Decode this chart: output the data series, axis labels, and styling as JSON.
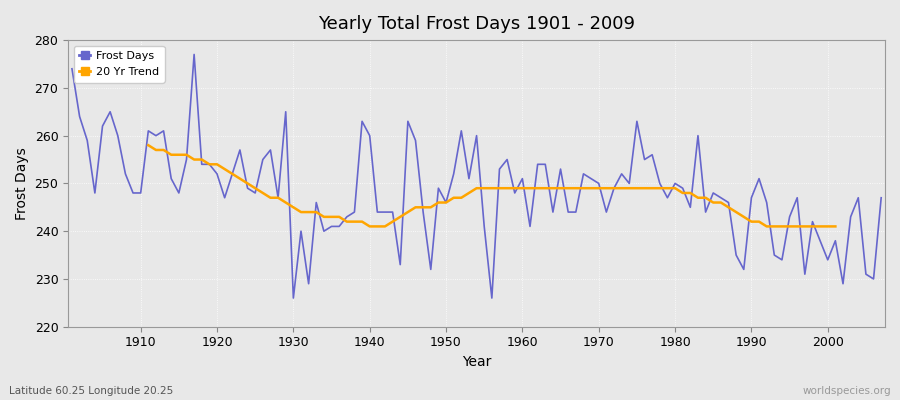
{
  "title": "Yearly Total Frost Days 1901 - 2009",
  "xlabel": "Year",
  "ylabel": "Frost Days",
  "bottom_left_label": "Latitude 60.25 Longitude 20.25",
  "bottom_right_label": "worldspecies.org",
  "frost_days": {
    "1901": 274,
    "1902": 264,
    "1903": 259,
    "1904": 248,
    "1905": 262,
    "1906": 265,
    "1907": 260,
    "1908": 252,
    "1909": 248,
    "1910": 248,
    "1911": 261,
    "1912": 260,
    "1913": 261,
    "1914": 251,
    "1915": 248,
    "1916": 255,
    "1917": 277,
    "1918": 254,
    "1919": 254,
    "1920": 252,
    "1921": 247,
    "1922": 252,
    "1923": 257,
    "1924": 249,
    "1925": 248,
    "1926": 255,
    "1927": 257,
    "1928": 247,
    "1929": 265,
    "1930": 226,
    "1931": 240,
    "1932": 229,
    "1933": 246,
    "1934": 240,
    "1935": 241,
    "1936": 241,
    "1937": 243,
    "1938": 244,
    "1939": 263,
    "1940": 260,
    "1941": 244,
    "1942": 244,
    "1943": 244,
    "1944": 233,
    "1945": 263,
    "1946": 259,
    "1947": 244,
    "1948": 232,
    "1949": 249,
    "1950": 246,
    "1951": 252,
    "1952": 261,
    "1953": 251,
    "1954": 260,
    "1955": 241,
    "1956": 226,
    "1957": 253,
    "1958": 255,
    "1959": 248,
    "1960": 251,
    "1961": 241,
    "1962": 254,
    "1963": 254,
    "1964": 244,
    "1965": 253,
    "1966": 244,
    "1967": 244,
    "1968": 252,
    "1969": 251,
    "1970": 250,
    "1971": 244,
    "1972": 249,
    "1973": 252,
    "1974": 250,
    "1975": 263,
    "1976": 255,
    "1977": 256,
    "1978": 250,
    "1979": 247,
    "1980": 250,
    "1981": 249,
    "1982": 245,
    "1983": 260,
    "1984": 244,
    "1985": 248,
    "1986": 247,
    "1987": 246,
    "1988": 235,
    "1989": 232,
    "1990": 247,
    "1991": 251,
    "1992": 246,
    "1993": 235,
    "1994": 234,
    "1995": 243,
    "1996": 247,
    "1997": 231,
    "1998": 242,
    "1999": 238,
    "2000": 234,
    "2001": 238,
    "2002": 229,
    "2003": 243,
    "2004": 247,
    "2005": 231,
    "2006": 230,
    "2007": 247
  },
  "trend": {
    "1911": 258,
    "1912": 257,
    "1913": 257,
    "1914": 256,
    "1915": 256,
    "1916": 256,
    "1917": 255,
    "1918": 255,
    "1919": 254,
    "1920": 254,
    "1921": 253,
    "1922": 252,
    "1923": 251,
    "1924": 250,
    "1925": 249,
    "1926": 248,
    "1927": 247,
    "1928": 247,
    "1929": 246,
    "1930": 245,
    "1931": 244,
    "1932": 244,
    "1933": 244,
    "1934": 243,
    "1935": 243,
    "1936": 243,
    "1937": 242,
    "1938": 242,
    "1939": 242,
    "1940": 241,
    "1941": 241,
    "1942": 241,
    "1943": 242,
    "1944": 243,
    "1945": 244,
    "1946": 245,
    "1947": 245,
    "1948": 245,
    "1949": 246,
    "1950": 246,
    "1951": 247,
    "1952": 247,
    "1953": 248,
    "1954": 249,
    "1955": 249,
    "1956": 249,
    "1957": 249,
    "1958": 249,
    "1959": 249,
    "1960": 249,
    "1961": 249,
    "1962": 249,
    "1963": 249,
    "1964": 249,
    "1965": 249,
    "1966": 249,
    "1967": 249,
    "1968": 249,
    "1969": 249,
    "1970": 249,
    "1971": 249,
    "1972": 249,
    "1973": 249,
    "1974": 249,
    "1975": 249,
    "1976": 249,
    "1977": 249,
    "1978": 249,
    "1979": 249,
    "1980": 249,
    "1981": 248,
    "1982": 248,
    "1983": 247,
    "1984": 247,
    "1985": 246,
    "1986": 246,
    "1987": 245,
    "1988": 244,
    "1989": 243,
    "1990": 242,
    "1991": 242,
    "1992": 241,
    "1993": 241,
    "1994": 241,
    "1995": 241,
    "1996": 241,
    "1997": 241,
    "1998": 241,
    "1999": 241,
    "2000": 241,
    "2001": 241
  },
  "frost_color": "#6666cc",
  "trend_color": "#ffa500",
  "bg_color": "#e8e8e8",
  "plot_bg_color": "#e8e8e8",
  "ylim": [
    220,
    280
  ],
  "yticks": [
    220,
    230,
    240,
    250,
    260,
    270,
    280
  ],
  "xticks": [
    1910,
    1920,
    1930,
    1940,
    1950,
    1960,
    1970,
    1980,
    1990,
    2000
  ]
}
